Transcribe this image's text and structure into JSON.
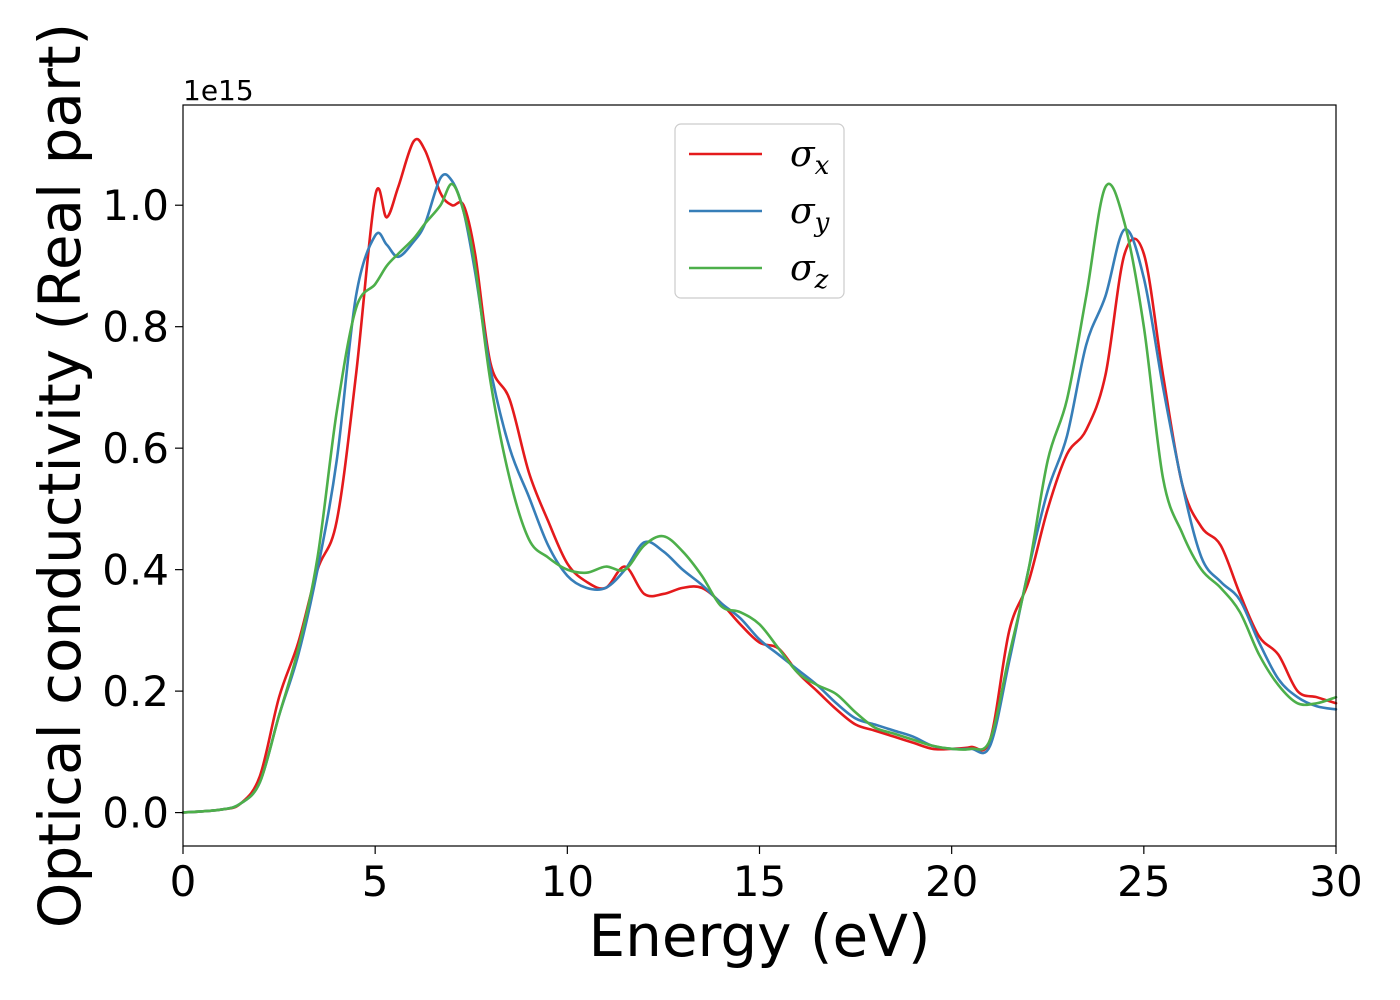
{
  "chart_data": {
    "type": "line",
    "xlabel": "Energy (eV)",
    "ylabel": "Optical conductivity (Real part)",
    "y_offset_label": "1e15",
    "xlim": [
      0,
      30
    ],
    "ylim": [
      -0.055,
      1.165
    ],
    "xticks": [
      0,
      5,
      10,
      15,
      20,
      25,
      30
    ],
    "xtick_labels": [
      "0",
      "5",
      "10",
      "15",
      "20",
      "25",
      "30"
    ],
    "yticks": [
      0.0,
      0.2,
      0.4,
      0.6,
      0.8,
      1.0
    ],
    "ytick_labels": [
      "0.0",
      "0.2",
      "0.4",
      "0.6",
      "0.8",
      "1.0"
    ],
    "grid": false,
    "legend_position": "top-center",
    "series": [
      {
        "name": "σx",
        "symbol": "σ",
        "subscript": "x",
        "color": "#e41a1c",
        "x": [
          0,
          1,
          1.5,
          2,
          2.5,
          3,
          3.5,
          4,
          4.5,
          5,
          5.3,
          5.6,
          6,
          6.3,
          6.7,
          7,
          7.3,
          7.6,
          8,
          8.5,
          9,
          9.5,
          10,
          10.5,
          11,
          11.5,
          12,
          12.5,
          13,
          13.5,
          14,
          14.5,
          15,
          15.5,
          16,
          16.5,
          17,
          17.5,
          18,
          18.5,
          19,
          19.5,
          20,
          20.5,
          21,
          21.5,
          22,
          22.5,
          23,
          23.5,
          24,
          24.5,
          25,
          25.5,
          26,
          26.5,
          27,
          27.5,
          28,
          28.5,
          29,
          29.5,
          30
        ],
        "y": [
          0.0,
          0.005,
          0.015,
          0.06,
          0.19,
          0.28,
          0.4,
          0.48,
          0.72,
          1.015,
          0.98,
          1.03,
          1.105,
          1.09,
          1.02,
          1.0,
          1.0,
          0.92,
          0.74,
          0.68,
          0.56,
          0.48,
          0.41,
          0.38,
          0.37,
          0.405,
          0.36,
          0.36,
          0.37,
          0.37,
          0.345,
          0.31,
          0.28,
          0.27,
          0.23,
          0.2,
          0.17,
          0.145,
          0.135,
          0.125,
          0.115,
          0.105,
          0.105,
          0.108,
          0.12,
          0.3,
          0.38,
          0.5,
          0.59,
          0.63,
          0.72,
          0.92,
          0.92,
          0.72,
          0.54,
          0.47,
          0.44,
          0.36,
          0.29,
          0.26,
          0.2,
          0.19,
          0.18
        ]
      },
      {
        "name": "σy",
        "symbol": "σ",
        "subscript": "y",
        "color": "#377eb8",
        "x": [
          0,
          1,
          1.5,
          2,
          2.5,
          3,
          3.5,
          4,
          4.5,
          5,
          5.3,
          5.6,
          6,
          6.3,
          6.7,
          7,
          7.3,
          7.6,
          8,
          8.5,
          9,
          9.5,
          10,
          10.5,
          11,
          11.5,
          12,
          12.5,
          13,
          13.5,
          14,
          14.5,
          15,
          15.5,
          16,
          16.5,
          17,
          17.5,
          18,
          18.5,
          19,
          19.5,
          20,
          20.5,
          21,
          21.5,
          22,
          22.5,
          23,
          23.5,
          24,
          24.5,
          25,
          25.5,
          26,
          26.5,
          27,
          27.5,
          28,
          28.5,
          29,
          29.5,
          30
        ],
        "y": [
          0.0,
          0.005,
          0.015,
          0.05,
          0.16,
          0.26,
          0.4,
          0.58,
          0.85,
          0.95,
          0.935,
          0.915,
          0.94,
          0.97,
          1.045,
          1.04,
          0.99,
          0.89,
          0.73,
          0.6,
          0.52,
          0.44,
          0.39,
          0.37,
          0.37,
          0.4,
          0.445,
          0.43,
          0.4,
          0.375,
          0.345,
          0.32,
          0.285,
          0.26,
          0.235,
          0.21,
          0.18,
          0.155,
          0.145,
          0.135,
          0.125,
          0.11,
          0.105,
          0.105,
          0.11,
          0.25,
          0.4,
          0.53,
          0.62,
          0.77,
          0.85,
          0.96,
          0.88,
          0.7,
          0.54,
          0.42,
          0.38,
          0.35,
          0.28,
          0.22,
          0.19,
          0.175,
          0.17
        ]
      },
      {
        "name": "σz",
        "symbol": "σ",
        "subscript": "z",
        "color": "#4daf4a",
        "x": [
          0,
          1,
          1.5,
          2,
          2.5,
          3,
          3.5,
          4,
          4.5,
          5,
          5.3,
          5.6,
          6,
          6.3,
          6.7,
          7,
          7.3,
          7.6,
          8,
          8.5,
          9,
          9.5,
          10,
          10.5,
          11,
          11.5,
          12,
          12.5,
          13,
          13.5,
          14,
          14.5,
          15,
          15.5,
          16,
          16.5,
          17,
          17.5,
          18,
          18.5,
          19,
          19.5,
          20,
          20.5,
          21,
          21.5,
          22,
          22.5,
          23,
          23.5,
          24,
          24.5,
          25,
          25.5,
          26,
          26.5,
          27,
          27.5,
          28,
          28.5,
          29,
          29.5,
          30
        ],
        "y": [
          0.0,
          0.005,
          0.015,
          0.05,
          0.16,
          0.27,
          0.42,
          0.66,
          0.83,
          0.87,
          0.9,
          0.92,
          0.945,
          0.97,
          1.0,
          1.035,
          0.99,
          0.9,
          0.71,
          0.55,
          0.45,
          0.42,
          0.4,
          0.395,
          0.405,
          0.4,
          0.44,
          0.455,
          0.43,
          0.39,
          0.34,
          0.33,
          0.31,
          0.27,
          0.23,
          0.21,
          0.195,
          0.165,
          0.14,
          0.13,
          0.12,
          0.11,
          0.105,
          0.105,
          0.12,
          0.26,
          0.4,
          0.58,
          0.68,
          0.85,
          1.03,
          0.97,
          0.8,
          0.55,
          0.46,
          0.4,
          0.37,
          0.33,
          0.26,
          0.21,
          0.18,
          0.18,
          0.19
        ]
      }
    ]
  }
}
